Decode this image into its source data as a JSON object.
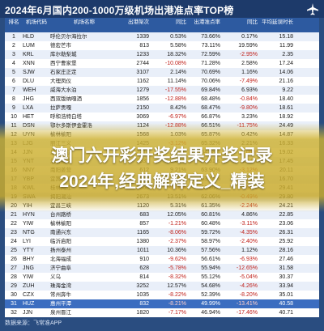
{
  "title": "2024年6月国内200-1000万级机场出港准点率TOP榜",
  "overlay": {
    "line1": "澳门六开彩开奖结果开奖记录",
    "line2": "2024年,经典解释定义_精装"
  },
  "footer": "数据来源：飞常准APP",
  "headers": [
    "排名",
    "机场代码",
    "机场名称",
    "出港架次",
    "同比",
    "出港准点率",
    "同比",
    "平均延误时长"
  ],
  "rows": [
    [
      "1",
      "HLD",
      "呼伦贝尔海拉尔",
      "1339",
      "0.53%",
      "73.66%",
      "0.17%",
      "15.18"
    ],
    [
      "2",
      "LUM",
      "德宏芒市",
      "813",
      "5.58%",
      "73.11%",
      "19.59%",
      "11.99"
    ],
    [
      "3",
      "KRL",
      "库尔勒梨城",
      "1233",
      "18.32%",
      "72.59%",
      "-2.95%",
      "2.35"
    ],
    [
      "4",
      "XNN",
      "西宁曹家堡",
      "2744",
      "-10.08%",
      "71.28%",
      "2.58%",
      "17.24"
    ],
    [
      "5",
      "SJW",
      "石家庄正定",
      "3107",
      "2.14%",
      "70.69%",
      "1.16%",
      "14.06"
    ],
    [
      "6",
      "DLU",
      "大理凤仪",
      "1162",
      "11.14%",
      "70.06%",
      "-7.49%",
      "21.16"
    ],
    [
      "7",
      "WEH",
      "威海大水泊",
      "1279",
      "-17.55%",
      "69.84%",
      "6.93%",
      "9.22"
    ],
    [
      "8",
      "JHG",
      "西双版纳嘎洒",
      "1856",
      "-12.88%",
      "68.48%",
      "-0.84%",
      "18.40"
    ],
    [
      "9",
      "LXA",
      "拉萨贡嘎",
      "2150",
      "8.42%",
      "68.47%",
      "-9.80%",
      "18.61"
    ],
    [
      "10",
      "HET",
      "呼和浩特白塔",
      "3069",
      "-6.97%",
      "66.87%",
      "3.23%",
      "18.92"
    ],
    [
      "11",
      "DSN",
      "鄂尔多斯伊金霍洛",
      "1124",
      "-12.88%",
      "66.51%",
      "-11.75%",
      "24.49"
    ],
    [
      "12",
      "UYN",
      "榆林榆阳",
      "1568",
      "1.03%",
      "65.87%",
      "0.42%",
      "14.87"
    ],
    [
      "13",
      "LJG",
      "丽江三义",
      "1425",
      "-3.12%",
      "65.32%",
      "2.21%",
      "16.33"
    ],
    [
      "14",
      "JJN",
      "泉州晋江",
      "2210",
      "4.67%",
      "64.98%",
      "-1.05%",
      "19.02"
    ],
    [
      "15",
      "YNT",
      "烟台蓬莱",
      "2931",
      "0.88%",
      "64.51%",
      "1.94%",
      "17.45"
    ],
    [
      "16",
      "NNY",
      "南阳姜营",
      "612",
      "9.21%",
      "63.90%",
      "-3.12%",
      "20.11"
    ],
    [
      "17",
      "YBP",
      "宜宾五粮液",
      "874",
      "12.05%",
      "63.44%",
      "4.28%",
      "16.70"
    ],
    [
      "18",
      "KWL",
      "桂林两江",
      "2366",
      "-5.18%",
      "62.86%",
      "-7.65%",
      "29.41"
    ],
    [
      "19",
      "SWA",
      "揭阳潮汕",
      "2673",
      "13.51%",
      "62.06%",
      "-0.49%",
      "29.80"
    ],
    [
      "20",
      "YIH",
      "宜昌三峡",
      "1120",
      "5.31%",
      "61.35%",
      "-2.24%",
      "24.21"
    ],
    [
      "21",
      "HYN",
      "台州路桥",
      "683",
      "12.05%",
      "60.81%",
      "4.86%",
      "22.85"
    ],
    [
      "22",
      "YIW",
      "榆林榆阳",
      "857",
      "-1.21%",
      "60.48%",
      "-3.11%",
      "23.06"
    ],
    [
      "23",
      "NTG",
      "南通兴东",
      "1165",
      "-8.06%",
      "59.72%",
      "-4.35%",
      "26.31"
    ],
    [
      "24",
      "LYI",
      "临沂启阳",
      "1380",
      "-2.37%",
      "58.97%",
      "-2.40%",
      "25.92"
    ],
    [
      "25",
      "YTY",
      "扬州泰州",
      "1011",
      "10.36%",
      "57.56%",
      "1.12%",
      "28.16"
    ],
    [
      "26",
      "BHY",
      "北海福成",
      "910",
      "-9.62%",
      "56.61%",
      "-6.93%",
      "27.46"
    ],
    [
      "27",
      "JNG",
      "济宁曲阜",
      "628",
      "-5.78%",
      "55.94%",
      "-12.65%",
      "31.58"
    ],
    [
      "28",
      "YIW",
      "义乌",
      "814",
      "-8.32%",
      "55.12%",
      "-5.04%",
      "30.37"
    ],
    [
      "29",
      "ZUH",
      "珠海金湾",
      "3252",
      "12.57%",
      "54.68%",
      "-4.26%",
      "33.94"
    ],
    [
      "30",
      "CZX",
      "常州奔牛",
      "1035",
      "-8.22%",
      "52.39%",
      "-8.20%",
      "35.01"
    ],
    [
      "31",
      "HUZ",
      "惠州平潭",
      "832",
      "-8.21%",
      "49.99%",
      "-13.41%",
      "40.58"
    ],
    [
      "32",
      "JJN",
      "泉州晋江",
      "1820",
      "-7.17%",
      "46.94%",
      "-17.46%",
      "40.71"
    ]
  ],
  "highlight_row": 30,
  "colors": {
    "header_bg": "#2d5aa0",
    "title_bg": "#1d3a6a",
    "negative": "#c0201a",
    "overlay": "#cdb232"
  },
  "icons": {
    "plane": "airplane-icon"
  }
}
